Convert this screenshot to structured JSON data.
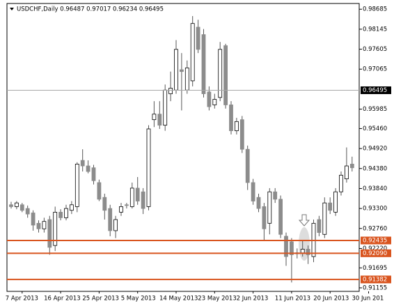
{
  "chart_data": {
    "type": "candlestick",
    "title": "USDCHF,Daily 0.96487 0.97017 0.96234 0.96495",
    "categories": [
      null,
      null,
      "7 Apr 2013",
      null,
      null,
      null,
      null,
      null,
      null,
      "16 Apr 2013",
      null,
      null,
      null,
      null,
      null,
      null,
      "25 Apr 2013",
      null,
      null,
      null,
      null,
      null,
      null,
      "5 May 2013",
      null,
      null,
      null,
      null,
      null,
      null,
      "14 May 2013",
      null,
      null,
      null,
      null,
      null,
      null,
      "23 May 2013",
      null,
      null,
      null,
      null,
      null,
      null,
      "2 Jun 2013",
      null,
      null,
      null,
      null,
      null,
      null,
      "11 Jun 2013",
      null,
      null,
      null,
      null,
      null,
      null,
      "20 Jun 2013",
      null,
      null,
      null,
      null,
      null,
      null,
      "30 Jun 201"
    ],
    "open": [
      0.934,
      0.9335,
      0.934,
      0.933,
      0.9318,
      0.929,
      0.9275,
      0.93,
      0.923,
      0.932,
      0.9305,
      0.9325,
      0.9335,
      0.946,
      0.9445,
      0.944,
      0.94,
      0.936,
      0.933,
      0.927,
      0.932,
      0.934,
      0.9335,
      0.9385,
      0.9375,
      0.9335,
      0.957,
      0.9585,
      0.9555,
      0.964,
      0.965,
      0.9705,
      0.965,
      0.9675,
      0.982,
      0.98,
      0.9645,
      0.961,
      0.963,
      0.977,
      0.961,
      0.954,
      0.957,
      0.949,
      0.94,
      0.936,
      0.9335,
      0.929,
      0.9375,
      0.9355,
      0.9255,
      0.924,
      0.9208,
      0.921,
      0.922,
      0.92,
      0.93,
      0.926,
      0.9345,
      0.932,
      0.9375,
      0.941,
      0.945,
      null,
      null,
      null
    ],
    "high": [
      0.9348,
      0.935,
      0.9345,
      0.9338,
      0.9325,
      0.9298,
      0.9305,
      0.931,
      0.9335,
      0.9328,
      0.934,
      0.935,
      0.9455,
      0.949,
      0.946,
      0.9448,
      0.9408,
      0.937,
      0.934,
      0.931,
      0.9345,
      0.9345,
      0.94,
      0.9415,
      0.9385,
      0.9555,
      0.962,
      0.962,
      0.9665,
      0.97,
      0.9785,
      0.975,
      0.973,
      0.985,
      0.984,
      0.9815,
      0.966,
      0.964,
      0.978,
      0.9775,
      0.962,
      0.9575,
      0.958,
      0.95,
      0.941,
      0.937,
      0.9345,
      0.9385,
      0.9385,
      0.9365,
      0.9265,
      0.925,
      0.9222,
      0.9245,
      0.923,
      0.93,
      0.931,
      0.936,
      0.936,
      0.9385,
      0.943,
      0.9495,
      0.947,
      null,
      null,
      null
    ],
    "low": [
      0.933,
      0.9328,
      0.932,
      0.9305,
      0.927,
      0.9265,
      0.9265,
      0.9205,
      0.9215,
      0.9298,
      0.9298,
      0.9315,
      0.932,
      0.943,
      0.9425,
      0.9395,
      0.935,
      0.93,
      0.9255,
      0.925,
      0.931,
      0.933,
      0.933,
      0.934,
      0.9315,
      0.9325,
      0.955,
      0.9545,
      0.954,
      0.962,
      0.964,
      0.9595,
      0.964,
      0.966,
      0.975,
      0.963,
      0.9595,
      0.96,
      0.962,
      0.96,
      0.953,
      0.953,
      0.948,
      0.938,
      0.934,
      0.932,
      0.9245,
      0.926,
      0.9345,
      0.925,
      0.9175,
      0.913,
      0.9195,
      0.92,
      0.918,
      0.9185,
      0.9255,
      0.925,
      0.9315,
      0.931,
      0.9365,
      0.94,
      0.943,
      null,
      null,
      null
    ],
    "close": [
      0.9335,
      0.9345,
      0.9325,
      0.9315,
      0.9285,
      0.9275,
      0.9295,
      0.9225,
      0.932,
      0.9305,
      0.933,
      0.934,
      0.945,
      0.9445,
      0.943,
      0.9405,
      0.9355,
      0.9325,
      0.927,
      0.93,
      0.9335,
      0.9338,
      0.9385,
      0.935,
      0.933,
      0.9545,
      0.9585,
      0.9555,
      0.965,
      0.9655,
      0.976,
      0.97,
      0.971,
      0.983,
      0.976,
      0.964,
      0.9605,
      0.9625,
      0.976,
      0.961,
      0.954,
      0.9565,
      0.949,
      0.94,
      0.935,
      0.933,
      0.9275,
      0.9375,
      0.9355,
      0.926,
      0.92,
      0.9205,
      0.921,
      0.922,
      0.9205,
      0.929,
      0.9265,
      0.9345,
      0.9325,
      0.9375,
      0.942,
      0.9445,
      0.944,
      null,
      null,
      null
    ],
    "up_color": "#ffffff",
    "down_color": "#8c8c8c",
    "wick_color": "#555555",
    "ylim": [
      0.9106,
      0.9884
    ],
    "yticks": [
      0.98685,
      0.98145,
      0.97605,
      0.97065,
      0.95985,
      {
        "value": 0.9546,
        "label": "0.95460"
      },
      {
        "value": 0.9492,
        "label": "0.94920"
      },
      {
        "value": 0.9438,
        "label": "0.94380"
      },
      {
        "value": 0.9384,
        "label": "0.93840"
      },
      {
        "value": 0.933,
        "label": "0.93300"
      },
      {
        "value": 0.9276,
        "label": "0.92760"
      },
      {
        "value": 0.9222,
        "label": "0.92220"
      },
      0.91695,
      0.91155
    ],
    "levels": [
      {
        "value": 0.96495,
        "color": "#a8a8a8",
        "label_bg": "#000000"
      },
      {
        "value": 0.92435,
        "color": "#d9541e",
        "label_bg": "#d9541e"
      },
      {
        "value": 0.9209,
        "label": "0.92090",
        "color": "#d9541e",
        "label_bg": "#d9541e"
      },
      {
        "value": 0.91382,
        "color": "#d9541e",
        "label_bg": "#d9541e"
      }
    ]
  }
}
